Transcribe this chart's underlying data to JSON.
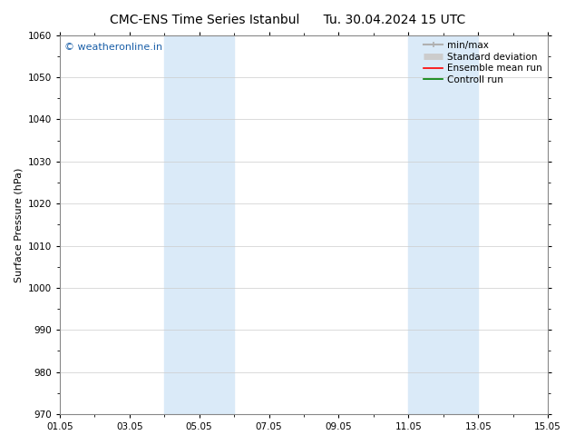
{
  "title_left": "CMC-ENS Time Series Istanbul",
  "title_right": "Tu. 30.04.2024 15 UTC",
  "ylabel": "Surface Pressure (hPa)",
  "ylim": [
    970,
    1060
  ],
  "yticks": [
    970,
    980,
    990,
    1000,
    1010,
    1020,
    1030,
    1040,
    1050,
    1060
  ],
  "xtick_labels": [
    "01.05",
    "03.05",
    "05.05",
    "07.05",
    "09.05",
    "11.05",
    "13.05",
    "15.05"
  ],
  "xtick_positions": [
    0,
    2,
    4,
    6,
    8,
    10,
    12,
    14
  ],
  "x_total_days": 14,
  "shaded_bands": [
    {
      "xmin": 3.0,
      "xmax": 5.0,
      "color": "#daeaf8"
    },
    {
      "xmin": 10.0,
      "xmax": 12.0,
      "color": "#daeaf8"
    }
  ],
  "watermark_text": "© weatheronline.in",
  "watermark_color": "#1a5fa8",
  "watermark_fontsize": 8,
  "legend_entries": [
    {
      "label": "min/max",
      "color": "#b0b0b0",
      "lw": 1.5
    },
    {
      "label": "Standard deviation",
      "color": "#cccccc",
      "lw": 5
    },
    {
      "label": "Ensemble mean run",
      "color": "red",
      "lw": 1.2
    },
    {
      "label": "Controll run",
      "color": "green",
      "lw": 1.2
    }
  ],
  "bg_color": "#ffffff",
  "grid_color": "#cccccc",
  "tick_fontsize": 7.5,
  "title_fontsize": 10,
  "ylabel_fontsize": 8,
  "legend_fontsize": 7.5
}
